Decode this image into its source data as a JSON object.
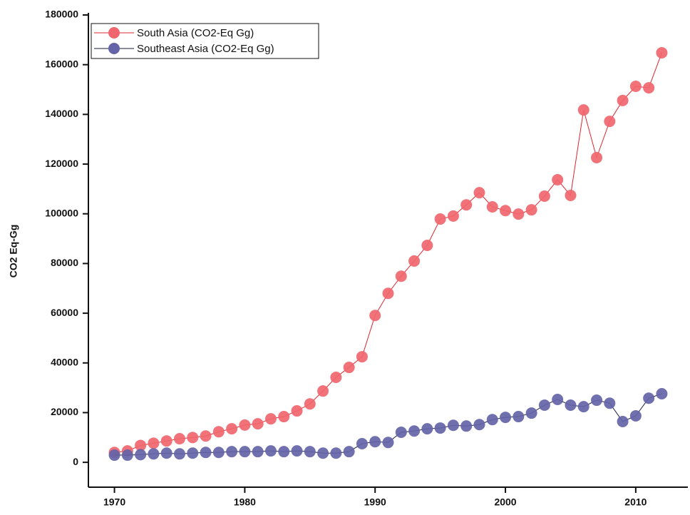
{
  "chart_data": {
    "type": "line",
    "y_label": "CO2 Eq-Gg",
    "x": [
      1970,
      1971,
      1972,
      1973,
      1974,
      1975,
      1976,
      1977,
      1978,
      1979,
      1980,
      1981,
      1982,
      1983,
      1984,
      1985,
      1986,
      1987,
      1988,
      1989,
      1990,
      1991,
      1992,
      1993,
      1994,
      1995,
      1996,
      1997,
      1998,
      1999,
      2000,
      2001,
      2002,
      2003,
      2004,
      2005,
      2006,
      2007,
      2008,
      2009,
      2010,
      2011,
      2012
    ],
    "series": [
      {
        "name": "South Asia (CO2-Eq Gg)",
        "color": "#f0666e",
        "line_color": "#e0242c",
        "values": [
          4000,
          4600,
          6800,
          7700,
          8600,
          9500,
          10000,
          10600,
          12300,
          13500,
          15000,
          15500,
          17500,
          18400,
          20700,
          23500,
          28700,
          34200,
          38200,
          42500,
          59100,
          68000,
          74900,
          81000,
          87300,
          97900,
          99100,
          103600,
          108500,
          102800,
          101300,
          99900,
          101600,
          107100,
          113700,
          107400,
          141800,
          122600,
          137200,
          145600,
          151300,
          150700,
          164800
        ]
      },
      {
        "name": "Southeast Asia (CO2-Eq Gg)",
        "color": "#6464a8",
        "line_color": "#1a1a40",
        "values": [
          2900,
          2900,
          3100,
          3400,
          3700,
          3400,
          3700,
          4000,
          4000,
          4300,
          4300,
          4300,
          4600,
          4300,
          4600,
          4300,
          3700,
          3700,
          4300,
          7500,
          8300,
          8000,
          12100,
          12600,
          13500,
          13800,
          14900,
          14600,
          15200,
          17200,
          18100,
          18400,
          19800,
          23000,
          25300,
          23000,
          22400,
          25000,
          23800,
          16400,
          18700,
          25800,
          27600
        ]
      }
    ],
    "xlim": [
      1968,
      2014
    ],
    "xticks": [
      1970,
      1980,
      1990,
      2000,
      2010
    ],
    "ylim": [
      -10000,
      180000
    ],
    "yticks": [
      0,
      20000,
      40000,
      60000,
      80000,
      100000,
      120000,
      140000,
      160000,
      180000
    ],
    "legend": "top-left"
  }
}
